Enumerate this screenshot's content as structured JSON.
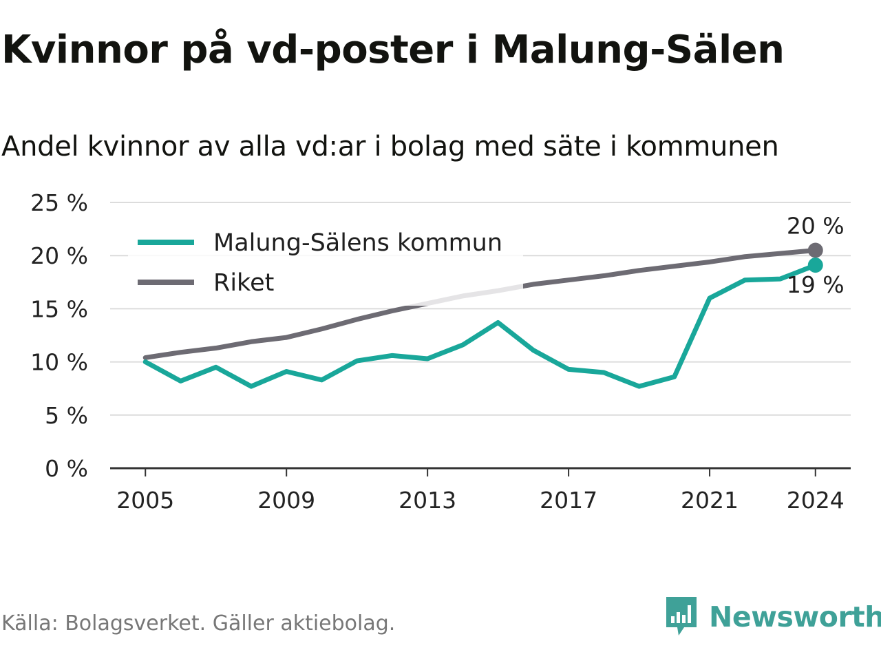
{
  "title": "Kvinnor på vd-poster i Malung-Sälen",
  "subtitle": "Andel kvinnor av alla vd:ar i bolag med säte i kommunen",
  "source": "Källa: Bolagsverket. Gäller aktiebolag.",
  "brand": {
    "name": "Newsworthy",
    "icon": "newsworthy-logo-icon",
    "color": "#3fa198"
  },
  "chart_data": {
    "type": "line",
    "x": [
      2005,
      2006,
      2007,
      2008,
      2009,
      2010,
      2011,
      2012,
      2013,
      2014,
      2015,
      2016,
      2017,
      2018,
      2019,
      2020,
      2021,
      2022,
      2023,
      2024
    ],
    "series": [
      {
        "name": "Malung-Sälens kommun",
        "color": "#19a79a",
        "values": [
          10.0,
          8.2,
          9.5,
          7.7,
          9.1,
          8.3,
          10.1,
          10.6,
          10.3,
          11.6,
          13.7,
          11.1,
          9.3,
          9.0,
          7.7,
          8.6,
          16.0,
          17.7,
          17.8,
          19.1
        ],
        "end_label": "19 %"
      },
      {
        "name": "Riket",
        "color": "#6d6b73",
        "values": [
          10.4,
          10.9,
          11.3,
          11.9,
          12.3,
          13.1,
          14.0,
          14.8,
          15.5,
          16.2,
          16.7,
          17.3,
          17.7,
          18.1,
          18.6,
          19.0,
          19.4,
          19.9,
          20.2,
          20.5
        ],
        "end_label": "20 %"
      }
    ],
    "y_ticks": [
      "0 %",
      "5 %",
      "10 %",
      "15 %",
      "20 %",
      "25 %"
    ],
    "x_ticks": [
      "2005",
      "2009",
      "2013",
      "2017",
      "2021",
      "2024"
    ],
    "ylim": [
      0,
      25
    ],
    "xlim": [
      2004.0,
      2025.0
    ],
    "grid": true,
    "legend_position": "top-left"
  }
}
